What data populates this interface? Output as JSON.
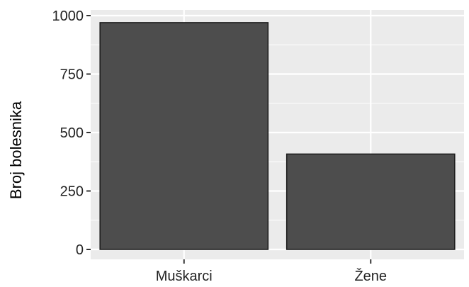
{
  "chart_data": {
    "type": "bar",
    "categories": [
      "Muškarci",
      "Žene"
    ],
    "values": [
      970,
      408
    ],
    "xlabel": "",
    "ylabel": "Broj bolesnika",
    "ylim": [
      0,
      1000
    ],
    "yticks": [
      0,
      250,
      500,
      750,
      1000
    ],
    "grid": true,
    "colors": {
      "panel": "#ebebeb",
      "grid": "#ffffff",
      "bar": "#4d4d4d",
      "bar_outline": "#1a1a1a",
      "ticks": "#333333"
    }
  }
}
